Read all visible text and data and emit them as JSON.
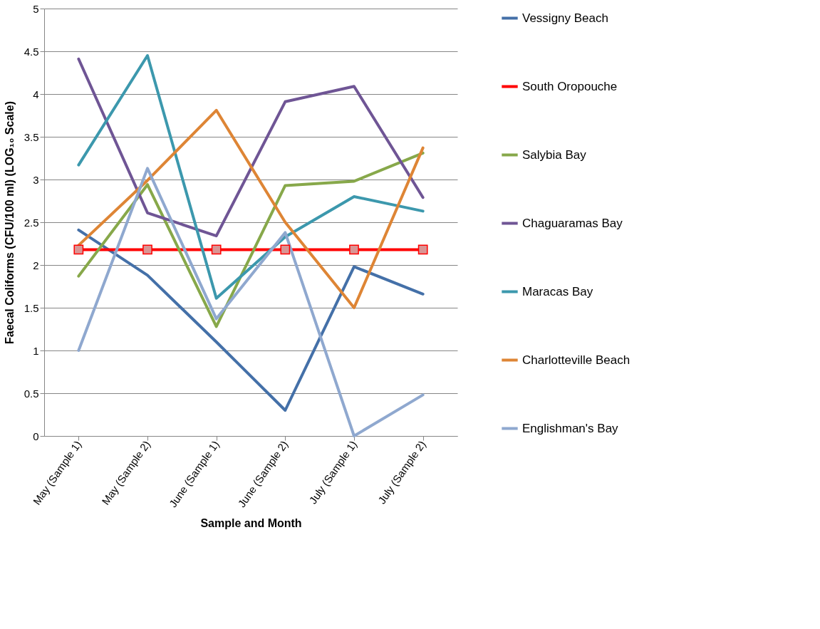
{
  "chart_data": {
    "type": "line",
    "xlabel": "Sample and Month",
    "ylabel": "Faecal Coliforms (CFU/100 ml) (LOG₁₀ Scale)",
    "categories": [
      "May (Sample 1)",
      "May (Sample 2)",
      "June (Sample 1)",
      "June (Sample 2)",
      "July (Sample 1)",
      "July (Sample 2)"
    ],
    "series": [
      {
        "name": "Vessigny Beach",
        "color": "#4470a8",
        "values": [
          2.41,
          1.88,
          1.1,
          0.3,
          1.98,
          1.66
        ]
      },
      {
        "name": "South Oropouche",
        "color": "#ff0000",
        "marker": "square",
        "values": [
          2.18,
          2.18,
          2.18,
          2.18,
          2.18,
          2.18
        ]
      },
      {
        "name": "Salybia Bay",
        "color": "#87a84a",
        "values": [
          1.87,
          2.94,
          1.28,
          2.93,
          2.98,
          3.31
        ]
      },
      {
        "name": "Chaguaramas Bay",
        "color": "#6f5595",
        "values": [
          4.41,
          2.61,
          2.34,
          3.91,
          4.09,
          2.79
        ]
      },
      {
        "name": "Maracas Bay",
        "color": "#3c98ad",
        "values": [
          3.17,
          4.45,
          1.61,
          2.33,
          2.8,
          2.63
        ]
      },
      {
        "name": "Charlotteville Beach",
        "color": "#de8535",
        "values": [
          2.23,
          2.99,
          3.81,
          2.5,
          1.5,
          3.37
        ]
      },
      {
        "name": "Englishman's Bay",
        "color": "#8fa8cf",
        "values": [
          1.0,
          3.13,
          1.37,
          2.38,
          0.0,
          0.48
        ]
      }
    ],
    "ylim": [
      0,
      5
    ],
    "yticks": [
      0,
      0.5,
      1,
      1.5,
      2,
      2.5,
      3,
      3.5,
      4,
      4.5,
      5
    ],
    "grid": "y",
    "legend": "right",
    "marker": "none",
    "line_style": "solid"
  }
}
